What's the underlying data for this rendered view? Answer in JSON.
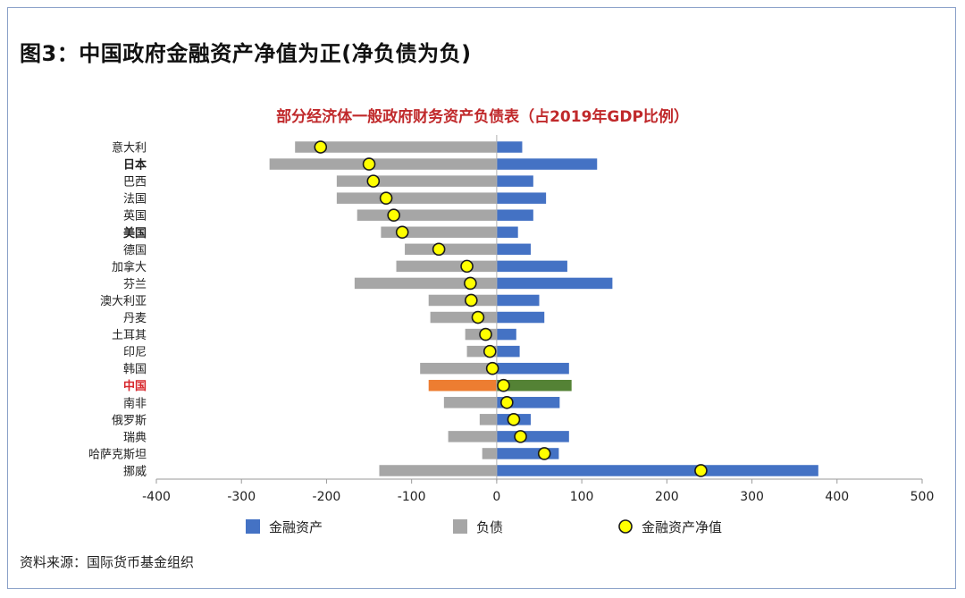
{
  "figure_title": "图3：中国政府金融资产净值为正(净负债为负)",
  "source": "资料来源：国际货币基金组织",
  "colors": {
    "assets": "#4472c4",
    "liabilities": "#a6a6a6",
    "net": "#ffff00",
    "china_assets": "#548235",
    "china_liabilities": "#ed7d31",
    "highlight_label": "#d7262b"
  },
  "chart_data": {
    "type": "bar",
    "orientation": "horizontal",
    "title": "部分经济体一般政府财务资产负债表（占2019年GDP比例）",
    "xlim": [
      -400,
      500
    ],
    "xticks": [
      -400,
      -300,
      -200,
      -100,
      0,
      100,
      200,
      300,
      400,
      500
    ],
    "legend_position": "bottom",
    "grid": false,
    "categories": [
      "意大利",
      "日本",
      "巴西",
      "法国",
      "英国",
      "美国",
      "德国",
      "加拿大",
      "芬兰",
      "澳大利亚",
      "丹麦",
      "土耳其",
      "印尼",
      "韩国",
      "中国",
      "南非",
      "俄罗斯",
      "瑞典",
      "哈萨克斯坦",
      "挪威"
    ],
    "bold_categories": [
      "日本",
      "美国",
      "中国"
    ],
    "highlight_category": "中国",
    "series": [
      {
        "name": "金融资产",
        "kind": "bar",
        "values": [
          30,
          118,
          43,
          58,
          43,
          25,
          40,
          83,
          136,
          50,
          56,
          23,
          27,
          85,
          88,
          74,
          40,
          85,
          73,
          378
        ]
      },
      {
        "name": "负债",
        "kind": "bar",
        "values": [
          -237,
          -267,
          -188,
          -188,
          -164,
          -136,
          -108,
          -118,
          -167,
          -80,
          -78,
          -37,
          -35,
          -90,
          -80,
          -62,
          -20,
          -57,
          -17,
          -138
        ]
      },
      {
        "name": "金融资产净值",
        "kind": "marker",
        "values": [
          -207,
          -150,
          -145,
          -130,
          -121,
          -111,
          -68,
          -35,
          -31,
          -30,
          -22,
          -13,
          -8,
          -5,
          8,
          12,
          20,
          28,
          56,
          240
        ]
      }
    ]
  }
}
